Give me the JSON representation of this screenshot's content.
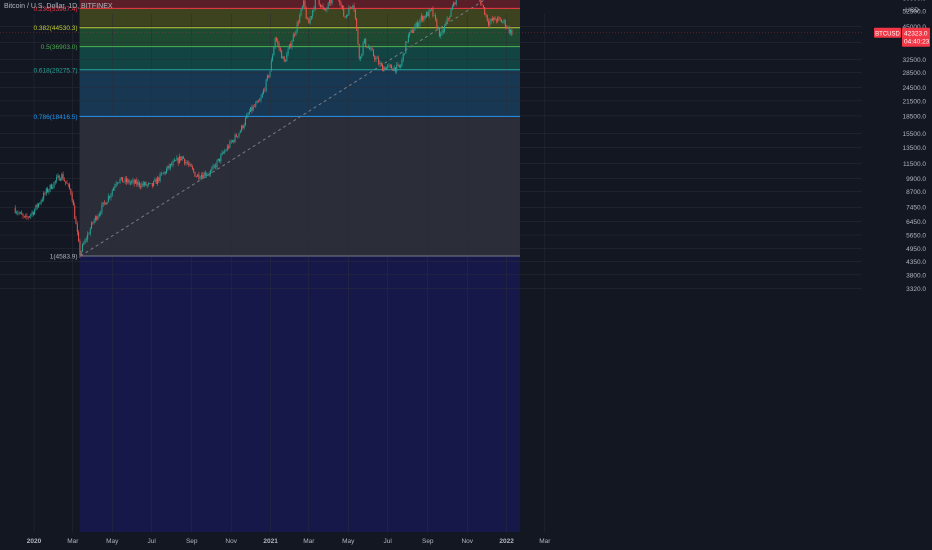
{
  "header": {
    "title": "Bitcoin / U.S. Dollar, 1D, BITFINEX"
  },
  "y_axis": {
    "currency": "USD",
    "ticks": [
      "96000.0",
      "84000.0",
      "72000.0",
      "60000.0",
      "52500.0",
      "45000.0",
      "38500.0",
      "32500.0",
      "28500.0",
      "24500.0",
      "21500.0",
      "18500.0",
      "15500.0",
      "13500.0",
      "11500.0",
      "9900.0",
      "8700.0",
      "7450.0",
      "6450.0",
      "5650.0",
      "4950.0",
      "4350.0",
      "3800.0",
      "3320.0"
    ]
  },
  "x_axis": {
    "ticks": [
      "2020",
      "Mar",
      "May",
      "Jul",
      "Sep",
      "Nov",
      "2021",
      "Mar",
      "May",
      "Jul",
      "Sep",
      "Nov",
      "2022",
      "Mar"
    ]
  },
  "price_badge": {
    "symbol": "BTCUSD",
    "price": "42323.0",
    "countdown": "04:40:23",
    "color": "#f23645"
  },
  "colors": {
    "background": "#131722",
    "up_candle": "#26a69a",
    "down_candle": "#ef5350",
    "trend_line": "#787b86"
  },
  "chart_data": {
    "type": "candlestick",
    "title": "Bitcoin / U.S. Dollar, 1D, BITFINEX",
    "scale": "log",
    "y_unit": "USD",
    "x_range": [
      "2019-12-01",
      "2022-03-15"
    ],
    "y_range": [
      3000,
      100000
    ],
    "fibonacci_retracement": {
      "start": {
        "date": "2020-03-13",
        "price": 4583.9
      },
      "end": {
        "date": "2021-12-31",
        "price": 69222.0
      },
      "levels": [
        {
          "ratio": "0",
          "label": "0(69222.0)",
          "price": 69222.0,
          "color": "#787b86",
          "fill": "#b22833"
        },
        {
          "ratio": "0.236",
          "label": "0.236(53967.4)",
          "price": 53967.4,
          "color": "#f23645",
          "fill": "#6f7a1a"
        },
        {
          "ratio": "0.382",
          "label": "0.382(44530.3)",
          "price": 44530.3,
          "color": "#c0ca33",
          "fill": "#2a8a45"
        },
        {
          "ratio": "0.5",
          "label": "0.5(36903.0)",
          "price": 36903.0,
          "color": "#4caf50",
          "fill": "#0f7d6a"
        },
        {
          "ratio": "0.618",
          "label": "0.618(29275.7)",
          "price": 29275.7,
          "color": "#26a69a",
          "fill": "#1f5f8f"
        },
        {
          "ratio": "0.786",
          "label": "0.786(18416.5)",
          "price": 18416.5,
          "color": "#2196f3",
          "fill": "#4a4a55"
        },
        {
          "ratio": "1",
          "label": "1(4583.9)",
          "price": 4583.9,
          "color": "#787b86",
          "fill": "#1a1a7a"
        }
      ]
    },
    "trend_line": {
      "from": {
        "date": "2020-03-13",
        "price": 4583.9
      },
      "to": {
        "date": "2021-12-31",
        "price": 69222.0
      }
    },
    "price_path": [
      [
        "2019-12-01",
        7400
      ],
      [
        "2019-12-18",
        6600
      ],
      [
        "2020-01-01",
        7200
      ],
      [
        "2020-01-20",
        8700
      ],
      [
        "2020-02-12",
        10300
      ],
      [
        "2020-02-28",
        8600
      ],
      [
        "2020-03-12",
        4700
      ],
      [
        "2020-03-16",
        5000
      ],
      [
        "2020-04-01",
        6400
      ],
      [
        "2020-04-30",
        8700
      ],
      [
        "2020-05-08",
        9800
      ],
      [
        "2020-06-01",
        9500
      ],
      [
        "2020-07-01",
        9200
      ],
      [
        "2020-07-28",
        11100
      ],
      [
        "2020-08-17",
        12300
      ],
      [
        "2020-09-08",
        10200
      ],
      [
        "2020-10-01",
        10600
      ],
      [
        "2020-10-21",
        12900
      ],
      [
        "2020-11-15",
        16000
      ],
      [
        "2020-11-30",
        19400
      ],
      [
        "2020-12-16",
        21500
      ],
      [
        "2020-12-31",
        29000
      ],
      [
        "2021-01-08",
        40500
      ],
      [
        "2021-01-22",
        31500
      ],
      [
        "2021-02-10",
        45000
      ],
      [
        "2021-02-21",
        56500
      ],
      [
        "2021-02-28",
        45500
      ],
      [
        "2021-03-13",
        61000
      ],
      [
        "2021-03-25",
        52000
      ],
      [
        "2021-04-14",
        64500
      ],
      [
        "2021-04-25",
        49000
      ],
      [
        "2021-05-09",
        58000
      ],
      [
        "2021-05-19",
        32000
      ],
      [
        "2021-05-25",
        39000
      ],
      [
        "2021-06-22",
        30000
      ],
      [
        "2021-07-20",
        29800
      ],
      [
        "2021-08-01",
        40500
      ],
      [
        "2021-08-22",
        49000
      ],
      [
        "2021-09-07",
        52500
      ],
      [
        "2021-09-21",
        40700
      ],
      [
        "2021-10-06",
        51500
      ],
      [
        "2021-10-20",
        66000
      ],
      [
        "2021-10-28",
        61000
      ],
      [
        "2021-11-10",
        68500
      ],
      [
        "2021-11-26",
        54000
      ],
      [
        "2021-12-04",
        47000
      ],
      [
        "2021-12-15",
        48500
      ],
      [
        "2021-12-28",
        47000
      ],
      [
        "2022-01-06",
        43000
      ],
      [
        "2022-01-10",
        42323
      ]
    ]
  }
}
